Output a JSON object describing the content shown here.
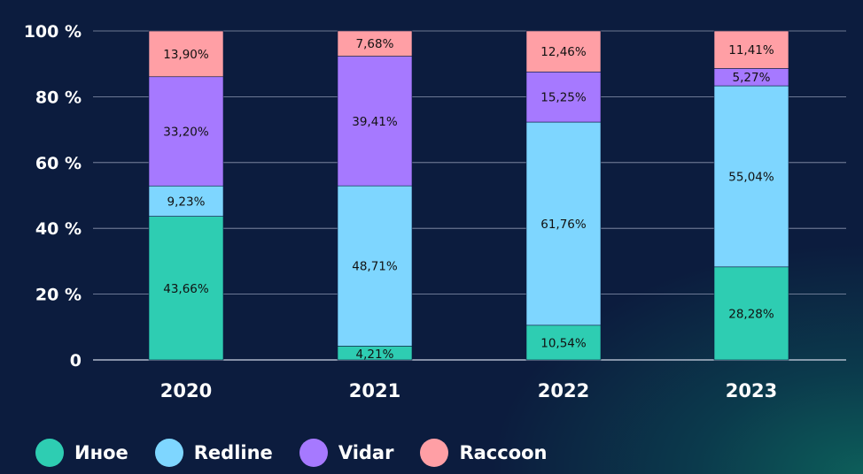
{
  "chart_data": {
    "type": "bar",
    "stacked": true,
    "categories": [
      "2020",
      "2021",
      "2022",
      "2023"
    ],
    "ylim": [
      0,
      100
    ],
    "yticks": [
      0,
      20,
      40,
      60,
      80,
      100
    ],
    "ytick_labels": [
      "0",
      "20 %",
      "40 %",
      "60 %",
      "80 %",
      "100 %"
    ],
    "grid": true,
    "legend_position": "bottom-left",
    "series": [
      {
        "name": "Иное",
        "color": "#2ecdb2",
        "values": [
          43.66,
          4.21,
          10.54,
          28.28
        ],
        "labels": [
          "43,66%",
          "4,21%",
          "10,54%",
          "28,28%"
        ]
      },
      {
        "name": "Redline",
        "color": "#7ed6ff",
        "values": [
          9.23,
          48.71,
          61.76,
          55.04
        ],
        "labels": [
          "9,23%",
          "48,71%",
          "61,76%",
          "55,04%"
        ]
      },
      {
        "name": "Vidar",
        "color": "#a679ff",
        "values": [
          33.2,
          39.41,
          15.25,
          5.27
        ],
        "labels": [
          "33,20%",
          "39,41%",
          "15,25%",
          "5,27%"
        ]
      },
      {
        "name": "Raccoon",
        "color": "#ff9fa5",
        "values": [
          13.9,
          7.68,
          12.46,
          11.41
        ],
        "labels": [
          "13,90%",
          "7,68%",
          "12,46%",
          "11,41%"
        ]
      }
    ]
  }
}
